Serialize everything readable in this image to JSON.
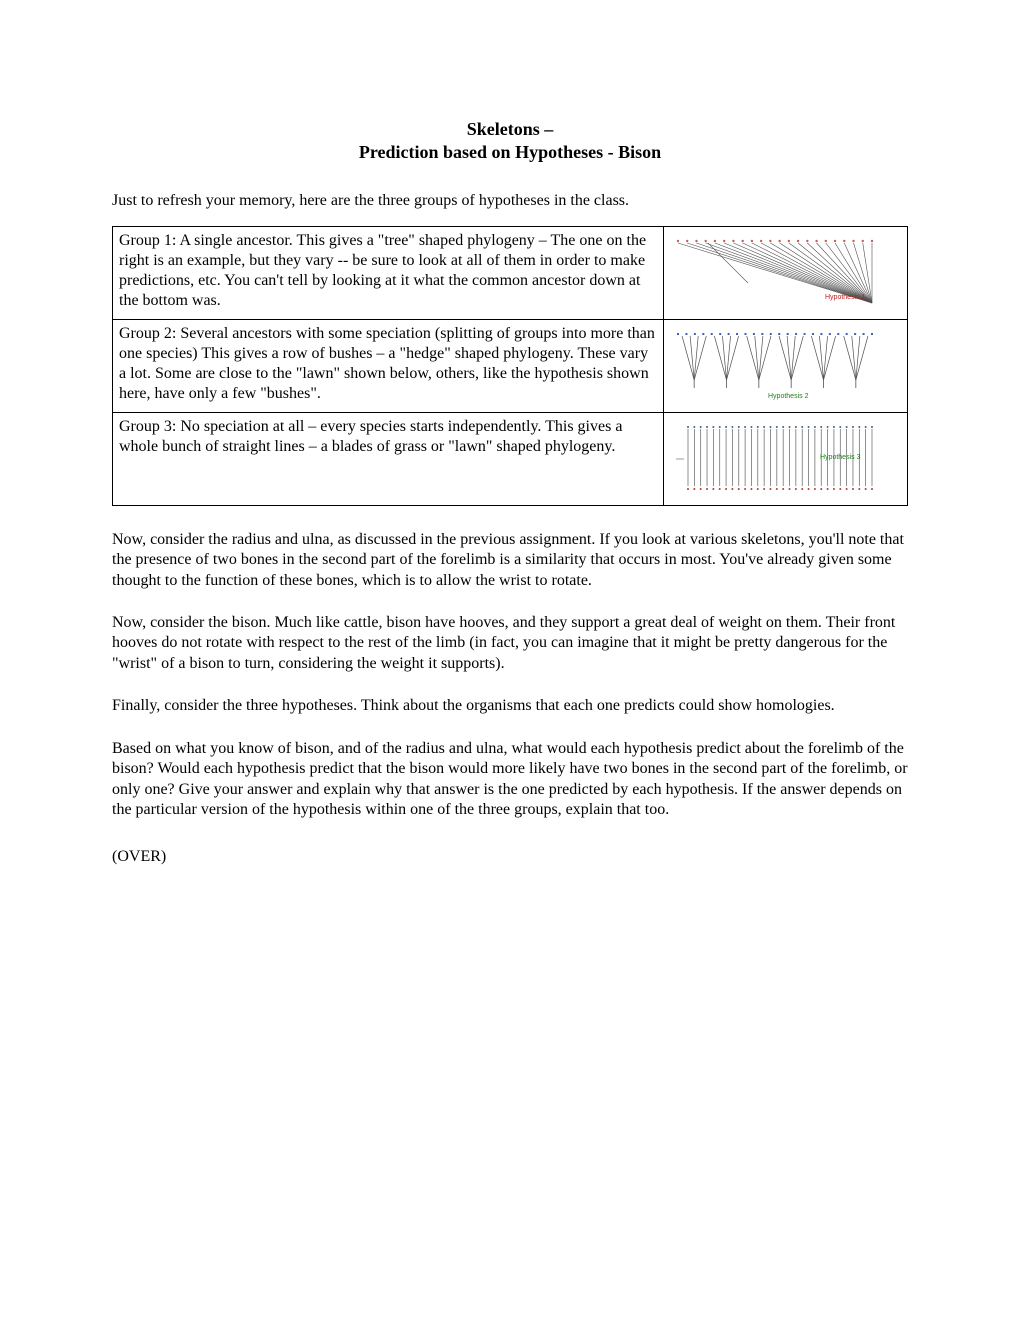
{
  "title_line1": "Skeletons –",
  "title_line2": "Prediction based on Hypotheses - Bison",
  "intro": "Just to refresh your memory, here are the three groups of hypotheses in the class.",
  "groups": [
    {
      "text": "Group 1: A single ancestor.  This gives a \"tree\" shaped phylogeny – The one on the right is an example, but they vary -- be sure to look at all of them in order to make predictions, etc.  You can't tell by looking at it what the common ancestor down at the bottom was.",
      "diagram": {
        "type": "tree",
        "top_color": "#c06060",
        "line_color": "#505050",
        "label": "Hypothesis 1",
        "label_color": "#c02020",
        "tips_n": 22
      }
    },
    {
      "text": "Group 2: Several ancestors with some speciation (splitting of groups into more than one species)  This gives a row of bushes – a \"hedge\" shaped phylogeny. These vary a lot.  Some are close to the \"lawn\" shown below, others, like the hypothesis shown here, have only a few \"bushes\".",
      "diagram": {
        "type": "hedge",
        "top_color": "#4060c0",
        "line_color": "#505050",
        "label": "Hypothesis 2",
        "label_color": "#208020",
        "bushes": 6
      }
    },
    {
      "text": "Group 3:  No speciation at all – every species starts independently.  This gives a whole bunch of straight lines – a blades of grass or \"lawn\" shaped phylogeny.",
      "diagram": {
        "type": "lawn",
        "top_color": "#406080",
        "bottom_color": "#a04040",
        "line_color": "#606060",
        "label": "Hypothesis 3",
        "label_color": "#208020",
        "lines_n": 30
      }
    }
  ],
  "body_paragraphs": [
    "Now, consider the radius and ulna, as discussed in the previous assignment.  If you look at various skeletons, you'll note that the presence of two bones in the second part of the forelimb is a similarity that occurs in most.  You've already given some thought to the function of these bones, which is to allow the wrist to rotate.",
    "Now, consider the bison.  Much like cattle, bison have hooves, and they support a great deal of weight on them.  Their front hooves do not rotate with respect to the rest of the limb (in fact, you can imagine that it might be pretty dangerous for the \"wrist\" of a bison to turn, considering the weight it supports).",
    "Finally, consider the three hypotheses.  Think about the organisms that each one predicts could show homologies.",
    "Based on what you know of bison, and of the radius and ulna, what would each hypothesis predict about the forelimb of the bison?   Would each hypothesis predict that the bison would more likely have two bones in the second part of the forelimb, or only one?  Give your answer and explain why that answer is the one predicted by each hypothesis.  If the answer depends on the particular version of the hypothesis within one of the three groups, explain that too."
  ],
  "over": "(OVER)"
}
